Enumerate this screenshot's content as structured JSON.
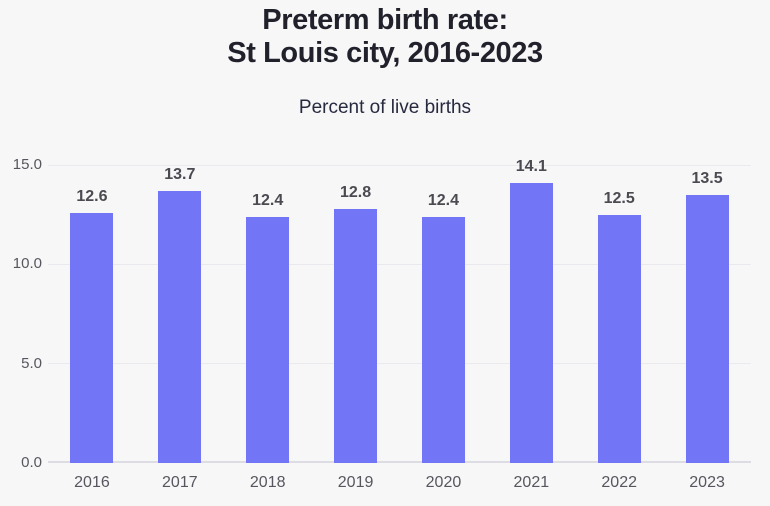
{
  "page": {
    "background_color": "#f7f7f8"
  },
  "header": {
    "title_line1": "Preterm birth rate:",
    "title_line2": "St Louis city, 2016-2023",
    "subtitle": "Percent of live births"
  },
  "chart_data": {
    "type": "bar",
    "title": "Preterm birth rate: St Louis city, 2016-2023",
    "subtitle": "Percent of live births",
    "categories": [
      "2016",
      "2017",
      "2018",
      "2019",
      "2020",
      "2021",
      "2022",
      "2023"
    ],
    "values": [
      12.6,
      13.7,
      12.4,
      12.8,
      12.4,
      14.1,
      12.5,
      13.5
    ],
    "value_labels": [
      "12.6",
      "13.7",
      "12.4",
      "12.8",
      "12.4",
      "14.1",
      "12.5",
      "13.5"
    ],
    "xlabel": "",
    "ylabel": "Percent of live births",
    "ylim": [
      0,
      15
    ],
    "yticks": [
      {
        "value": 0,
        "label": "0.0"
      },
      {
        "value": 5,
        "label": "5.0"
      },
      {
        "value": 10,
        "label": "10.0"
      },
      {
        "value": 15,
        "label": "15.0"
      }
    ],
    "grid": true,
    "legend": false,
    "colors": {
      "bar": "#7276f6",
      "grid_line": "#e9e9ee",
      "axis_line": "#dcdce2",
      "tick_label": "#56565e",
      "category_label": "#56565e",
      "value_label": "#4a4a50",
      "title": "#20212b",
      "subtitle": "#272a3f",
      "background": "#f7f7f8"
    }
  }
}
